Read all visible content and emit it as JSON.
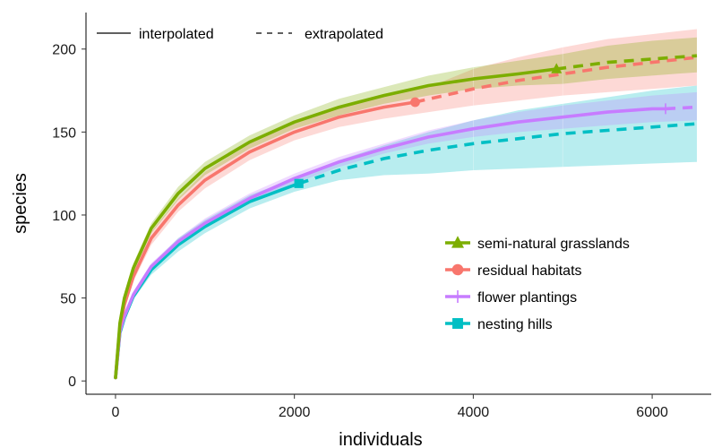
{
  "chart_data": {
    "type": "line",
    "xlabel": "individuals",
    "ylabel": "species",
    "xlim": [
      -330,
      6660
    ],
    "ylim": [
      -8,
      222
    ],
    "x_ticks": [
      0,
      2000,
      4000,
      6000
    ],
    "y_ticks": [
      0,
      50,
      100,
      150,
      200
    ],
    "x_tick_labels": [
      "0",
      "2000",
      "4000",
      "6000"
    ],
    "y_tick_labels": [
      "0",
      "50",
      "100",
      "150",
      "200"
    ],
    "grid": false,
    "line_legend": {
      "placement": "top-left",
      "items": [
        {
          "label": "interpolated",
          "style": "solid"
        },
        {
          "label": "extrapolated",
          "style": "dashed"
        }
      ]
    },
    "series_legend_placement": "bottom-right",
    "series": [
      {
        "name": "semi-natural grasslands",
        "color": "#7CAE00",
        "marker": "triangle",
        "observed": {
          "x": 4930,
          "y": 188
        },
        "interpolated": {
          "x": [
            0,
            50,
            100,
            200,
            400,
            700,
            1000,
            1500,
            2000,
            2500,
            3000,
            3500,
            4000,
            4500,
            4930
          ],
          "y": [
            2,
            35,
            50,
            68,
            92,
            113,
            128,
            144,
            156,
            165,
            172,
            178,
            182,
            185,
            188
          ]
        },
        "extrapolated": {
          "x": [
            4930,
            5500,
            6000,
            6500
          ],
          "y": [
            188,
            192,
            194,
            196
          ]
        },
        "ci_upper": [
          2,
          37,
          53,
          71,
          95,
          117,
          132,
          148,
          160,
          170,
          177,
          184,
          189,
          193,
          197,
          202,
          205,
          207
        ],
        "ci_lower": [
          2,
          33,
          47,
          65,
          89,
          109,
          124,
          140,
          152,
          160,
          167,
          172,
          176,
          178,
          179,
          182,
          184,
          186
        ]
      },
      {
        "name": "residual habitats",
        "color": "#F8766D",
        "marker": "circle",
        "observed": {
          "x": 3350,
          "y": 168
        },
        "interpolated": {
          "x": [
            0,
            50,
            100,
            200,
            400,
            700,
            1000,
            1500,
            2000,
            2500,
            3000,
            3350
          ],
          "y": [
            2,
            33,
            46,
            63,
            86,
            106,
            121,
            138,
            150,
            159,
            165,
            168
          ]
        },
        "extrapolated": {
          "x": [
            3350,
            4000,
            4500,
            5000,
            5500,
            6000,
            6500
          ],
          "y": [
            168,
            176,
            181,
            185,
            189,
            192,
            195
          ]
        },
        "ci_upper": [
          2,
          35,
          49,
          66,
          90,
          110,
          126,
          143,
          155,
          165,
          172,
          177,
          188,
          195,
          201,
          206,
          209,
          212
        ],
        "ci_lower": [
          2,
          31,
          43,
          60,
          82,
          102,
          116,
          133,
          145,
          153,
          158,
          162,
          166,
          169,
          172,
          174,
          176,
          178
        ]
      },
      {
        "name": "flower plantings",
        "color": "#C77CFF",
        "marker": "plus",
        "observed": {
          "x": 6150,
          "y": 164
        },
        "interpolated": {
          "x": [
            0,
            50,
            100,
            200,
            400,
            700,
            1000,
            1500,
            2000,
            2500,
            3000,
            3500,
            4000,
            4500,
            5000,
            5500,
            6000,
            6150
          ],
          "y": [
            2,
            30,
            39,
            52,
            69,
            84,
            95,
            110,
            122,
            132,
            140,
            147,
            152,
            156,
            159,
            162,
            164,
            164
          ]
        },
        "extrapolated": {
          "x": [
            6150,
            6500
          ],
          "y": [
            164,
            165
          ]
        },
        "ci_upper": [
          2,
          32,
          41,
          54,
          71,
          86,
          98,
          113,
          125,
          135,
          143,
          151,
          157,
          162,
          166,
          169,
          172,
          174
        ],
        "ci_lower": [
          2,
          28,
          37,
          50,
          67,
          82,
          92,
          107,
          119,
          129,
          137,
          143,
          147,
          150,
          152,
          154,
          156,
          157
        ]
      },
      {
        "name": "nesting hills",
        "color": "#00BFC4",
        "marker": "square",
        "observed": {
          "x": 2050,
          "y": 119
        },
        "interpolated": {
          "x": [
            0,
            50,
            100,
            200,
            400,
            700,
            1000,
            1500,
            2000,
            2050
          ],
          "y": [
            2,
            29,
            38,
            51,
            67,
            82,
            93,
            108,
            118,
            119
          ]
        },
        "extrapolated": {
          "x": [
            2050,
            2500,
            3000,
            3500,
            4000,
            4500,
            5000,
            5500,
            6000,
            6500
          ],
          "y": [
            119,
            127,
            134,
            139,
            143,
            146,
            149,
            151,
            153,
            155
          ]
        },
        "ci_upper": [
          2,
          31,
          40,
          53,
          70,
          86,
          97,
          112,
          122,
          133,
          142,
          150,
          157,
          163,
          167,
          171,
          175,
          178
        ],
        "ci_lower": [
          2,
          27,
          36,
          49,
          64,
          78,
          89,
          104,
          114,
          121,
          124,
          125,
          127,
          128,
          129,
          130,
          131,
          132
        ]
      }
    ],
    "ci_x": [
      0,
      50,
      100,
      200,
      400,
      700,
      1000,
      1500,
      2000,
      2500,
      3000,
      3500,
      4000,
      4500,
      5000,
      5500,
      6000,
      6500
    ]
  }
}
